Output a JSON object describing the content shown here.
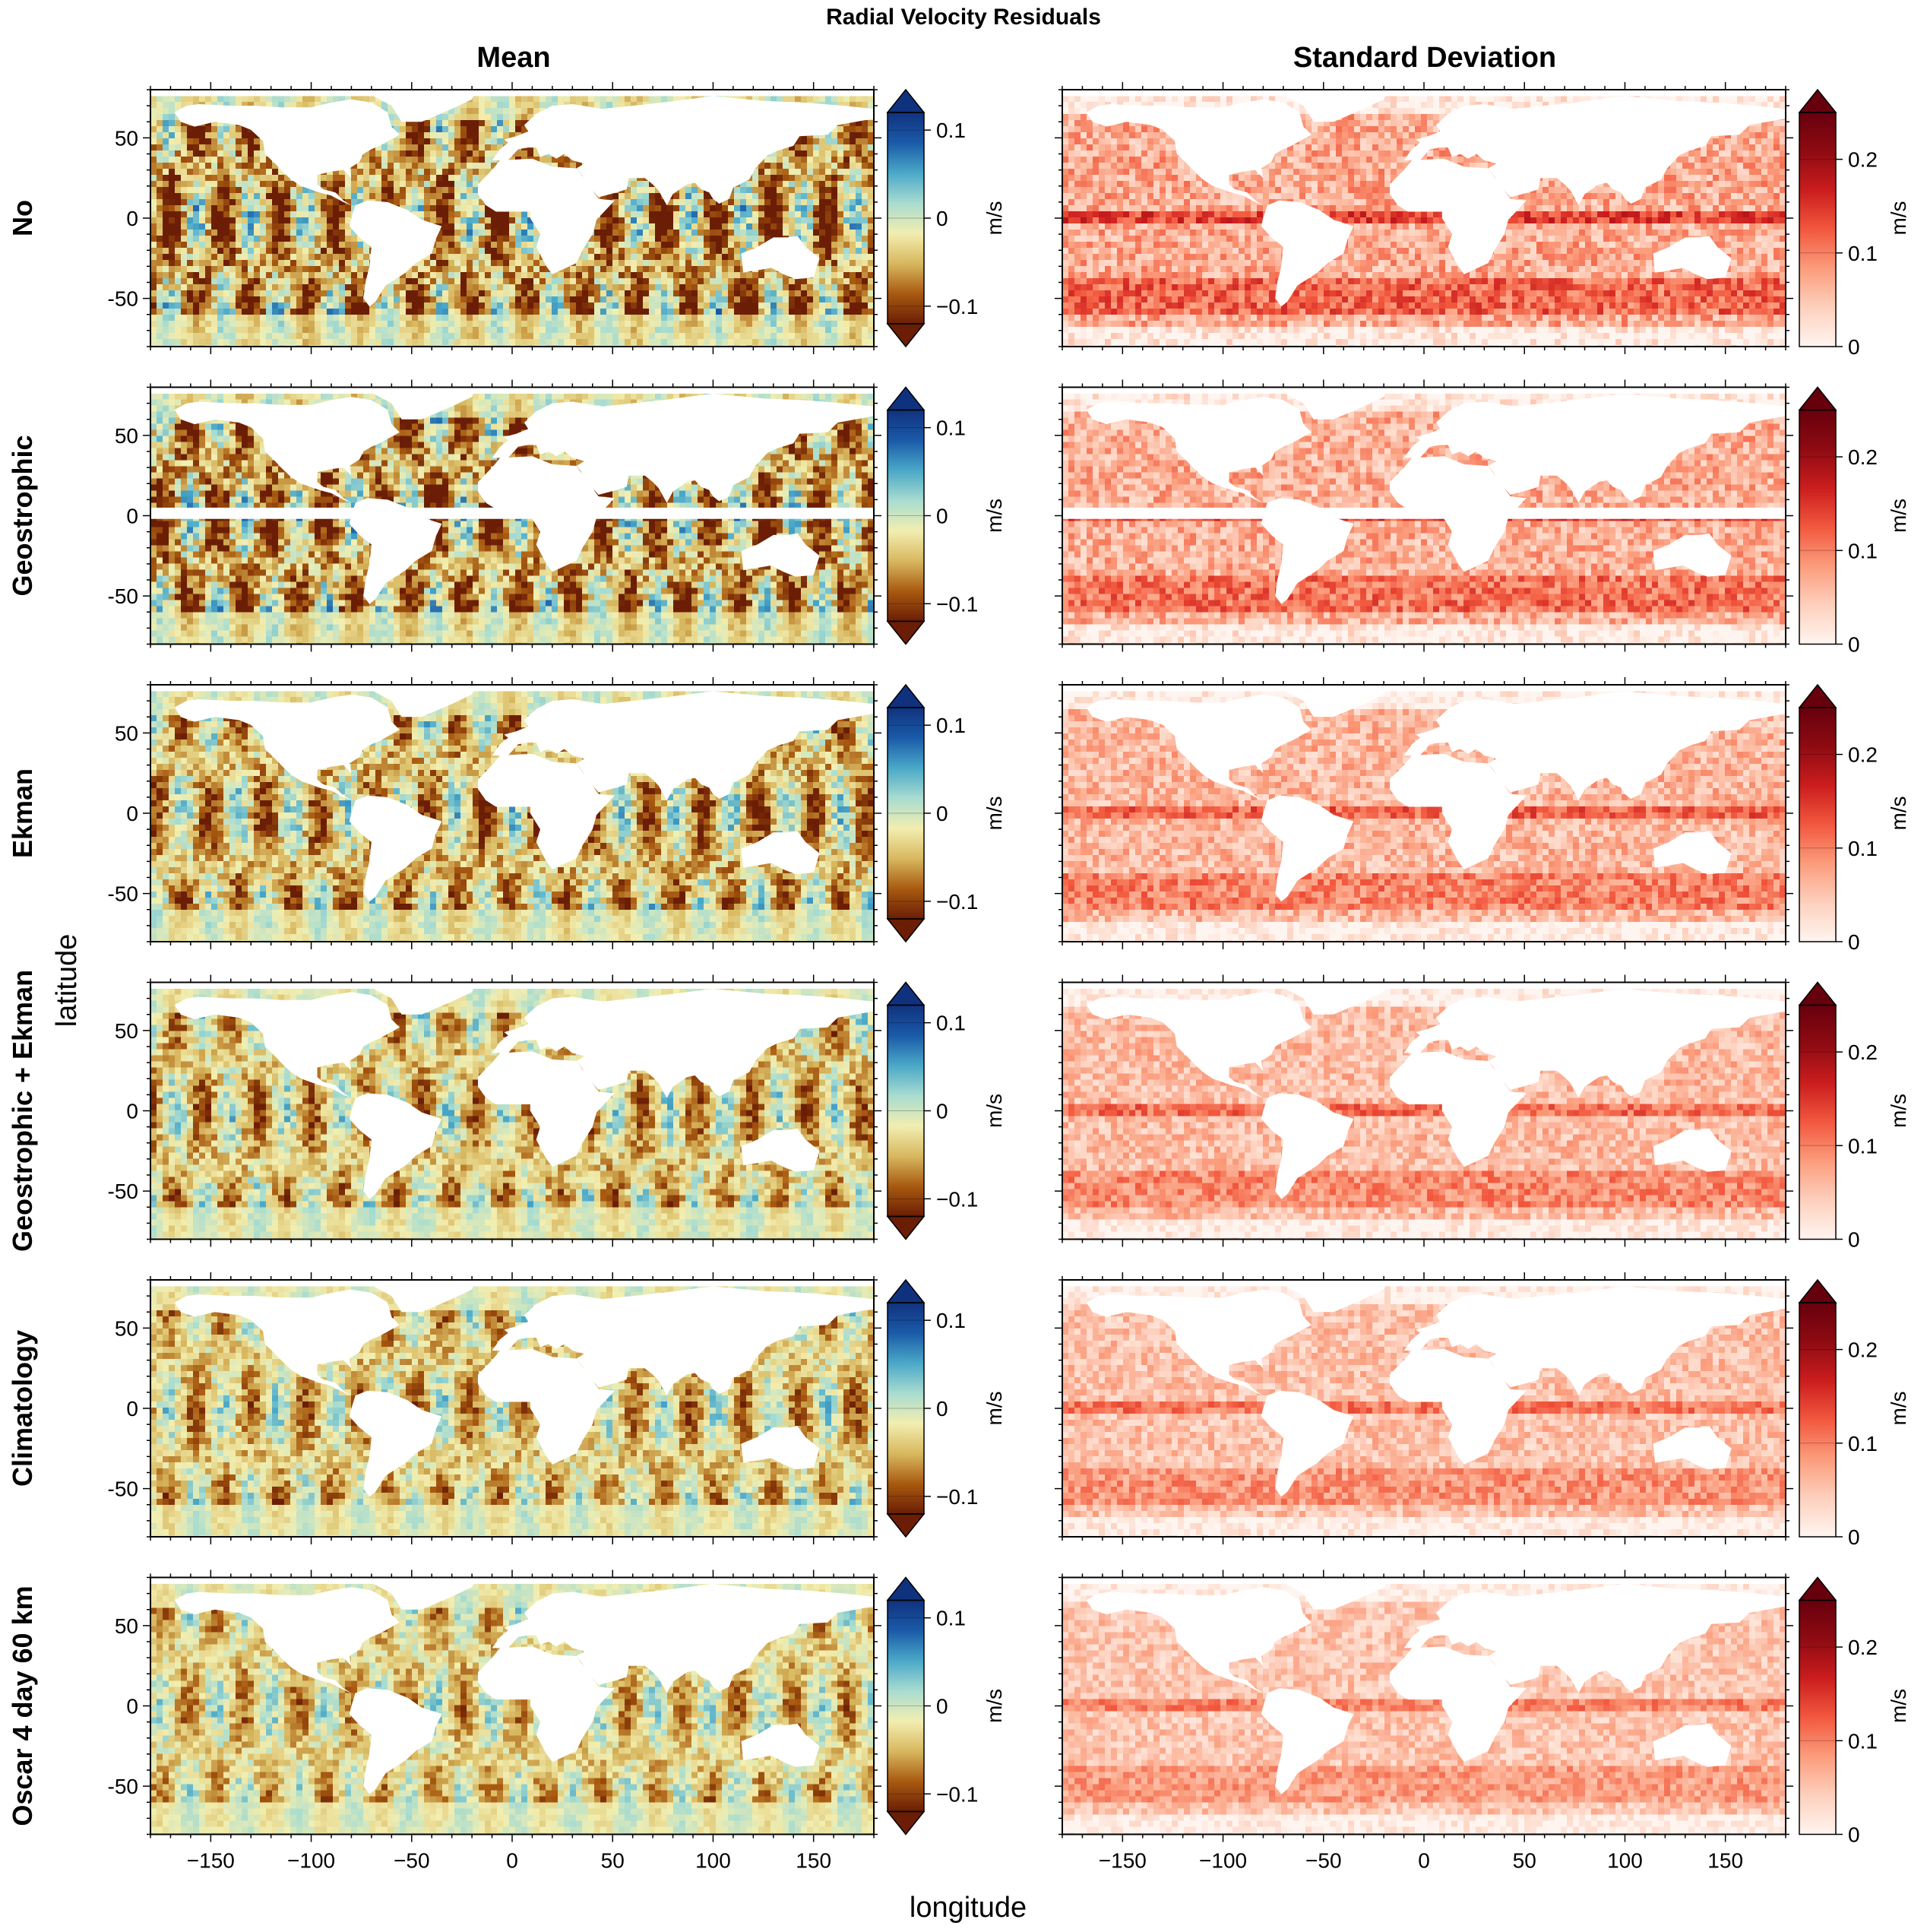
{
  "figure": {
    "title": "Radial Velocity Residuals",
    "column_titles": [
      "Mean",
      "Standard Deviation"
    ],
    "xlabel": "longitude",
    "ylabel": "latitude",
    "colors": {
      "mean_cmap": [
        "#6b1e05",
        "#a85a10",
        "#d8b860",
        "#f2eeb0",
        "#a8dcd0",
        "#4aa8c8",
        "#1a5aa8",
        "#10327e"
      ],
      "std_cmap": [
        "#fff5f0",
        "#fdd0bd",
        "#fb9c7c",
        "#f2583e",
        "#cb1d1e",
        "#8e0b12",
        "#67000d"
      ],
      "land": "#ffffff",
      "frame": "#000000"
    }
  },
  "chart_data": [
    {
      "type": "heatmap",
      "row_label": "No",
      "panel": "Mean",
      "xlim": [
        -180,
        180
      ],
      "ylim": [
        -80,
        80
      ],
      "xticks": [
        -150,
        -100,
        -50,
        0,
        50,
        100,
        150
      ],
      "yticks": [
        -50,
        0,
        50
      ],
      "colorbar": {
        "label": "m/s",
        "ticks": [
          -0.1,
          0,
          0.1
        ],
        "ticklabels": [
          "−0.1",
          "0",
          "0.1"
        ],
        "range": [
          -0.12,
          0.12
        ],
        "extend": "both"
      },
      "intensity": 1.0,
      "equatorial_gap": false
    },
    {
      "type": "heatmap",
      "row_label": "No",
      "panel": "Standard Deviation",
      "xlim": [
        -180,
        180
      ],
      "ylim": [
        -80,
        80
      ],
      "xticks": [
        -150,
        -100,
        -50,
        0,
        50,
        100,
        150
      ],
      "yticks": [
        -50,
        0,
        50
      ],
      "colorbar": {
        "label": "m/s",
        "ticks": [
          0,
          0.1,
          0.2
        ],
        "ticklabels": [
          "0",
          "0.1",
          "0.2"
        ],
        "range": [
          0,
          0.25
        ],
        "extend": "max"
      },
      "intensity": 1.0,
      "equatorial_gap": false
    },
    {
      "type": "heatmap",
      "row_label": "Geostrophic",
      "panel": "Mean",
      "xlim": [
        -180,
        180
      ],
      "ylim": [
        -80,
        80
      ],
      "xticks": [
        -150,
        -100,
        -50,
        0,
        50,
        100,
        150
      ],
      "yticks": [
        -50,
        0,
        50
      ],
      "colorbar": {
        "label": "m/s",
        "ticks": [
          -0.1,
          0,
          0.1
        ],
        "ticklabels": [
          "−0.1",
          "0",
          "0.1"
        ],
        "range": [
          -0.12,
          0.12
        ],
        "extend": "both"
      },
      "intensity": 1.0,
      "equatorial_gap": true
    },
    {
      "type": "heatmap",
      "row_label": "Geostrophic",
      "panel": "Standard Deviation",
      "xlim": [
        -180,
        180
      ],
      "ylim": [
        -80,
        80
      ],
      "xticks": [
        -150,
        -100,
        -50,
        0,
        50,
        100,
        150
      ],
      "yticks": [
        -50,
        0,
        50
      ],
      "colorbar": {
        "label": "m/s",
        "ticks": [
          0,
          0.1,
          0.2
        ],
        "ticklabels": [
          "0",
          "0.1",
          "0.2"
        ],
        "range": [
          0,
          0.25
        ],
        "extend": "max"
      },
      "intensity": 0.95,
      "equatorial_gap": true
    },
    {
      "type": "heatmap",
      "row_label": "Ekman",
      "panel": "Mean",
      "xlim": [
        -180,
        180
      ],
      "ylim": [
        -80,
        80
      ],
      "xticks": [
        -150,
        -100,
        -50,
        0,
        50,
        100,
        150
      ],
      "yticks": [
        -50,
        0,
        50
      ],
      "colorbar": {
        "label": "m/s",
        "ticks": [
          -0.1,
          0,
          0.1
        ],
        "ticklabels": [
          "−0.1",
          "0",
          "0.1"
        ],
        "range": [
          -0.12,
          0.12
        ],
        "extend": "both"
      },
      "intensity": 0.8,
      "equatorial_gap": false
    },
    {
      "type": "heatmap",
      "row_label": "Ekman",
      "panel": "Standard Deviation",
      "xlim": [
        -180,
        180
      ],
      "ylim": [
        -80,
        80
      ],
      "xticks": [
        -150,
        -100,
        -50,
        0,
        50,
        100,
        150
      ],
      "yticks": [
        -50,
        0,
        50
      ],
      "colorbar": {
        "label": "m/s",
        "ticks": [
          0,
          0.1,
          0.2
        ],
        "ticklabels": [
          "0",
          "0.1",
          "0.2"
        ],
        "range": [
          0,
          0.25
        ],
        "extend": "max"
      },
      "intensity": 0.85,
      "equatorial_gap": false
    },
    {
      "type": "heatmap",
      "row_label": "Geostrophic + Ekman",
      "panel": "Mean",
      "xlim": [
        -180,
        180
      ],
      "ylim": [
        -80,
        80
      ],
      "xticks": [
        -150,
        -100,
        -50,
        0,
        50,
        100,
        150
      ],
      "yticks": [
        -50,
        0,
        50
      ],
      "colorbar": {
        "label": "m/s",
        "ticks": [
          -0.1,
          0,
          0.1
        ],
        "ticklabels": [
          "−0.1",
          "0",
          "0.1"
        ],
        "range": [
          -0.12,
          0.12
        ],
        "extend": "both"
      },
      "intensity": 0.7,
      "equatorial_gap": false
    },
    {
      "type": "heatmap",
      "row_label": "Geostrophic + Ekman",
      "panel": "Standard Deviation",
      "xlim": [
        -180,
        180
      ],
      "ylim": [
        -80,
        80
      ],
      "xticks": [
        -150,
        -100,
        -50,
        0,
        50,
        100,
        150
      ],
      "yticks": [
        -50,
        0,
        50
      ],
      "colorbar": {
        "label": "m/s",
        "ticks": [
          0,
          0.1,
          0.2
        ],
        "ticklabels": [
          "0",
          "0.1",
          "0.2"
        ],
        "range": [
          0,
          0.25
        ],
        "extend": "max"
      },
      "intensity": 0.8,
      "equatorial_gap": false
    },
    {
      "type": "heatmap",
      "row_label": "Climatology",
      "panel": "Mean",
      "xlim": [
        -180,
        180
      ],
      "ylim": [
        -80,
        80
      ],
      "xticks": [
        -150,
        -100,
        -50,
        0,
        50,
        100,
        150
      ],
      "yticks": [
        -50,
        0,
        50
      ],
      "colorbar": {
        "label": "m/s",
        "ticks": [
          -0.1,
          0,
          0.1
        ],
        "ticklabels": [
          "−0.1",
          "0",
          "0.1"
        ],
        "range": [
          -0.12,
          0.12
        ],
        "extend": "both"
      },
      "intensity": 0.65,
      "equatorial_gap": false
    },
    {
      "type": "heatmap",
      "row_label": "Climatology",
      "panel": "Standard Deviation",
      "xlim": [
        -180,
        180
      ],
      "ylim": [
        -80,
        80
      ],
      "xticks": [
        -150,
        -100,
        -50,
        0,
        50,
        100,
        150
      ],
      "yticks": [
        -50,
        0,
        50
      ],
      "colorbar": {
        "label": "m/s",
        "ticks": [
          0,
          0.1,
          0.2
        ],
        "ticklabels": [
          "0",
          "0.1",
          "0.2"
        ],
        "range": [
          0,
          0.25
        ],
        "extend": "max"
      },
      "intensity": 0.75,
      "equatorial_gap": false
    },
    {
      "type": "heatmap",
      "row_label": "Oscar 4 day 60 km",
      "panel": "Mean",
      "xlim": [
        -180,
        180
      ],
      "ylim": [
        -80,
        80
      ],
      "xticks": [
        -150,
        -100,
        -50,
        0,
        50,
        100,
        150
      ],
      "yticks": [
        -50,
        0,
        50
      ],
      "colorbar": {
        "label": "m/s",
        "ticks": [
          -0.1,
          0,
          0.1
        ],
        "ticklabels": [
          "−0.1",
          "0",
          "0.1"
        ],
        "range": [
          -0.12,
          0.12
        ],
        "extend": "both"
      },
      "intensity": 0.6,
      "equatorial_gap": false
    },
    {
      "type": "heatmap",
      "row_label": "Oscar 4 day 60 km",
      "panel": "Standard Deviation",
      "xlim": [
        -180,
        180
      ],
      "ylim": [
        -80,
        80
      ],
      "xticks": [
        -150,
        -100,
        -50,
        0,
        50,
        100,
        150
      ],
      "yticks": [
        -50,
        0,
        50
      ],
      "colorbar": {
        "label": "m/s",
        "ticks": [
          0,
          0.1,
          0.2
        ],
        "ticklabels": [
          "0",
          "0.1",
          "0.2"
        ],
        "range": [
          0,
          0.25
        ],
        "extend": "max"
      },
      "intensity": 0.7,
      "equatorial_gap": false
    }
  ]
}
